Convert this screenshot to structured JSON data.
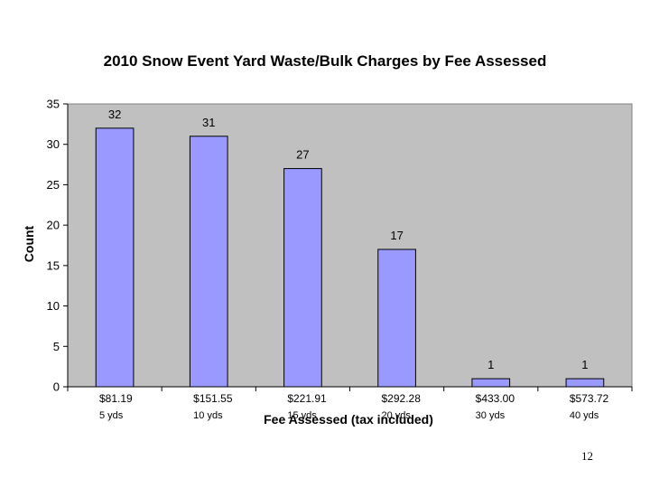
{
  "page_number": "12",
  "chart_data": {
    "type": "bar",
    "title": "2010 Snow Event Yard Waste/Bulk Charges by Fee Assessed",
    "xlabel": "Fee Assessed (tax included)",
    "ylabel": "Count",
    "categories": [
      "$81.19",
      "$151.55",
      "$221.91",
      "$292.28",
      "$433.00",
      "$573.72"
    ],
    "category_sublabels": [
      "5 yds",
      "10 yds",
      "15 yds",
      "20 yds",
      "30 yds",
      "40 yds"
    ],
    "values": [
      32,
      31,
      27,
      17,
      1,
      1
    ],
    "data_labels": [
      "32",
      "31",
      "27",
      "17",
      "1",
      "1"
    ],
    "ylim": [
      0,
      35
    ],
    "yticks": [
      0,
      5,
      10,
      15,
      20,
      25,
      30,
      35
    ],
    "grid": false,
    "legend": "none",
    "colors": {
      "bar_fill": "#9999ff",
      "bar_stroke": "#000000",
      "plot_background": "#c0c0c0"
    }
  }
}
